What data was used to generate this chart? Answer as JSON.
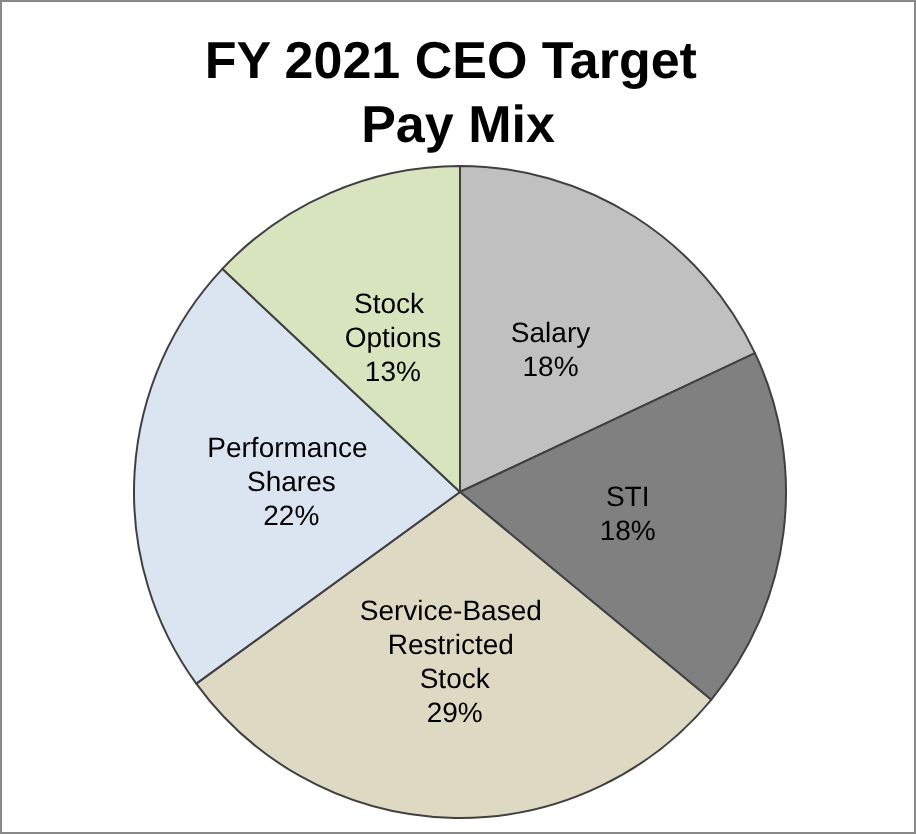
{
  "chart_data": {
    "type": "pie",
    "title": "FY 2021 CEO Target Pay Mix",
    "categories": [
      "Salary",
      "STI",
      "Service-Based Restricted Stock",
      "Performance Shares",
      "Stock Options"
    ],
    "values": [
      18,
      18,
      29,
      22,
      13
    ],
    "value_labels": [
      "18%",
      "18%",
      "29%",
      "22%",
      "13%"
    ],
    "colors": [
      "#c0c0c0",
      "#808080",
      "#ddd9c3",
      "#dbe5f1",
      "#d7e4bd"
    ],
    "legend": false
  }
}
